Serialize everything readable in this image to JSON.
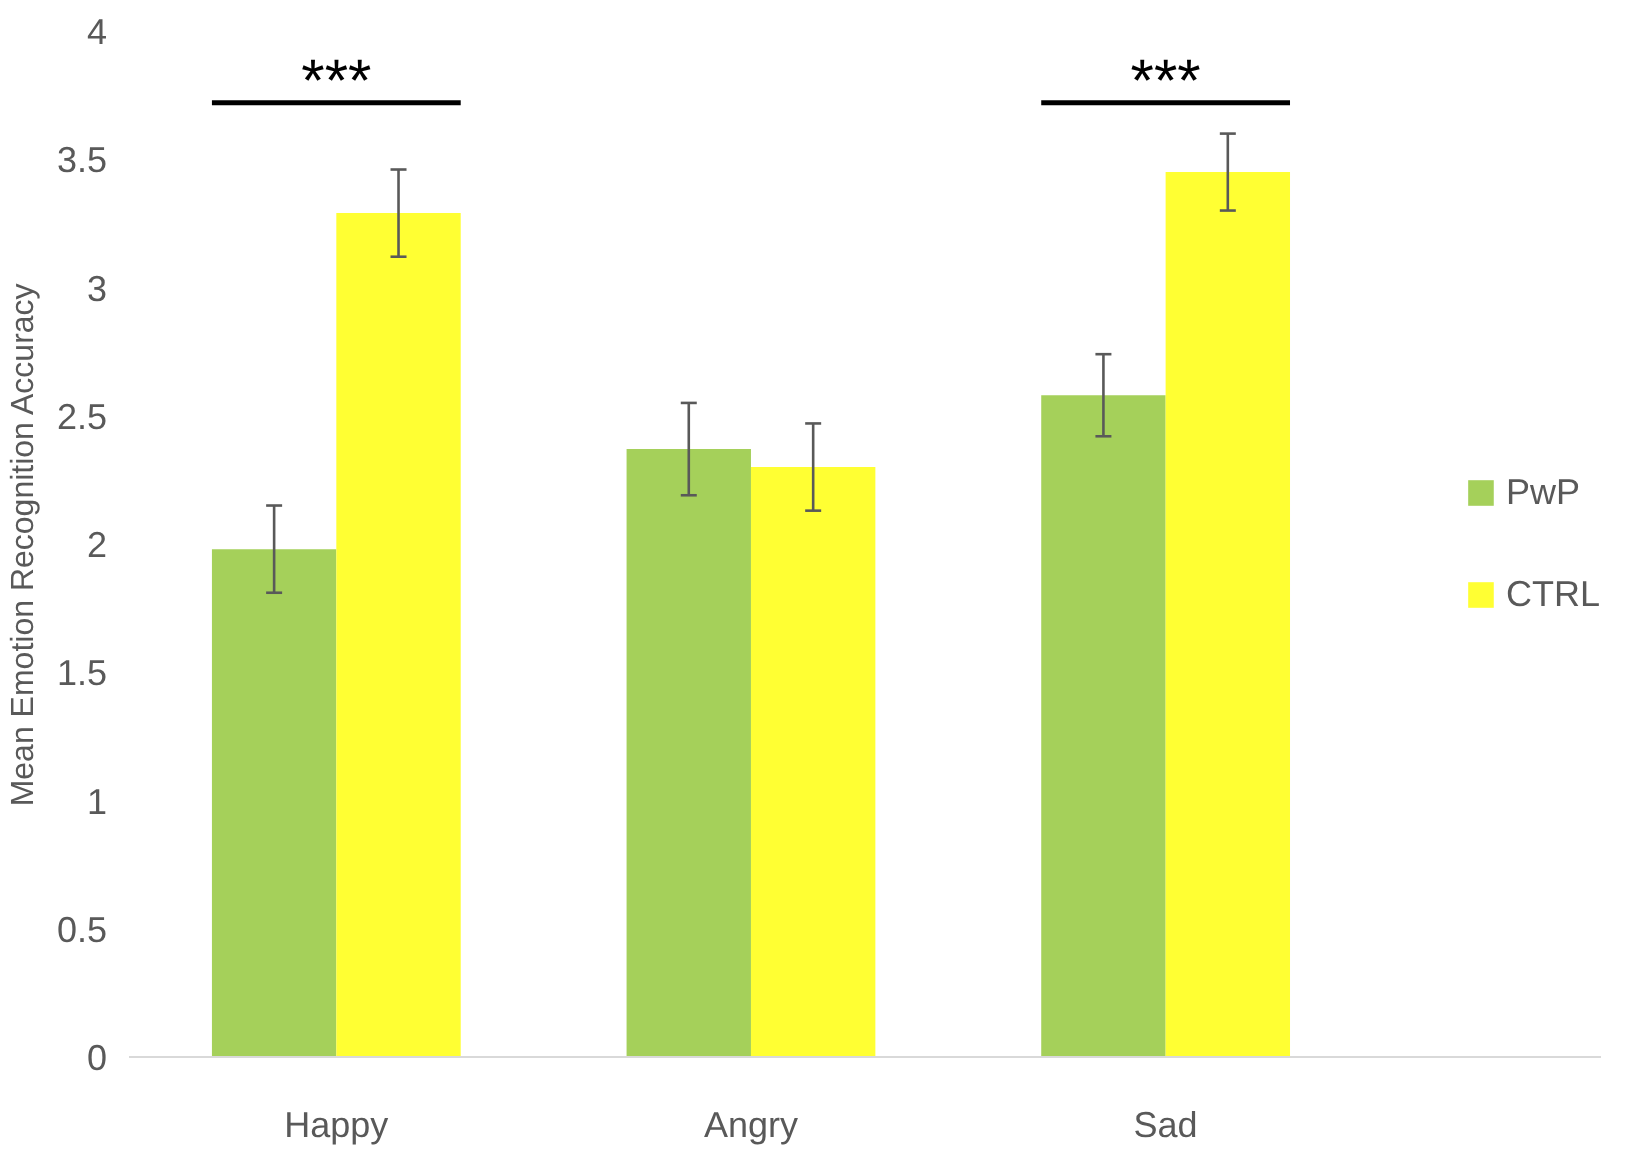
{
  "chart_data": {
    "type": "bar",
    "ylabel": "Mean Emotion Recognition Accuracy",
    "categories": [
      "Happy",
      "Angry",
      "Sad"
    ],
    "series": [
      {
        "name": "PwP",
        "color": "#a5d05a",
        "values": [
          1.98,
          2.37,
          2.58
        ],
        "errors": [
          0.17,
          0.18,
          0.16
        ]
      },
      {
        "name": "CTRL",
        "color": "#ffff33",
        "values": [
          3.29,
          2.3,
          3.45
        ],
        "errors": [
          0.17,
          0.17,
          0.15
        ]
      }
    ],
    "annotations": [
      "***",
      "***"
    ],
    "ylim": [
      0,
      4
    ],
    "yticks": [
      0,
      0.5,
      1,
      1.5,
      2,
      2.5,
      3,
      3.5,
      4
    ],
    "grid": false,
    "legend": "right"
  }
}
